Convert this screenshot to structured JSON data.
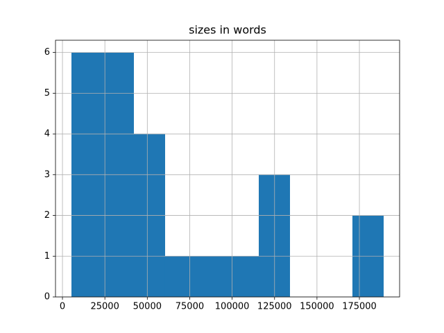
{
  "chart_data": {
    "type": "histogram",
    "title": "sizes in words",
    "bins": [
      5300,
      23700,
      42100,
      60500,
      78900,
      97300,
      115700,
      134100,
      152500,
      170900,
      189300
    ],
    "values": [
      6,
      6,
      4,
      1,
      1,
      1,
      3,
      0,
      0,
      2
    ],
    "color": "#1f77b4",
    "xlim": [
      -4100,
      198700
    ],
    "xticks": [
      0,
      25000,
      50000,
      75000,
      100000,
      125000,
      150000,
      175000
    ],
    "ylim": [
      0,
      6.3
    ],
    "yticks": [
      0,
      1,
      2,
      3,
      4,
      5,
      6
    ],
    "grid": true
  }
}
